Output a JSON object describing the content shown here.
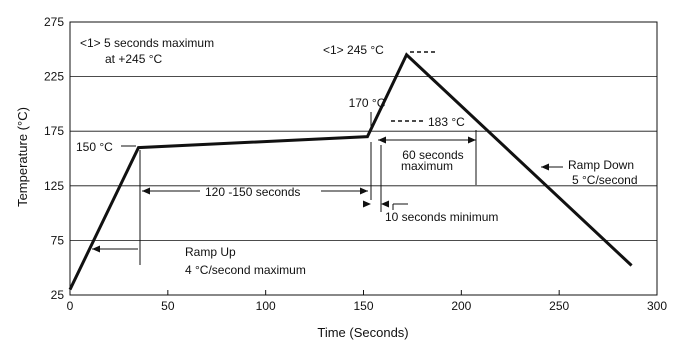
{
  "chart_data": {
    "type": "line",
    "xlabel": "Time (Seconds)",
    "ylabel": "Temperature (°C)",
    "xlim": [
      0,
      300
    ],
    "ylim": [
      25,
      275
    ],
    "x_ticks": [
      0,
      50,
      100,
      150,
      200,
      250,
      300
    ],
    "y_ticks": [
      25,
      75,
      125,
      175,
      225,
      275
    ],
    "grid": "horizontal",
    "series": [
      {
        "x": [
          0,
          35,
          152,
          172,
          287
        ],
        "y": [
          30,
          160,
          170,
          245,
          52
        ]
      }
    ],
    "annotations": {
      "peak_note_line1": "<1> 5 seconds maximum",
      "peak_note_line2": "at +245 °C",
      "peak_label": "<1> 245 °C",
      "soak_start_label": "150 °C",
      "soak_end_label": "170 °C",
      "liquidus_label": "183 °C",
      "soak_duration_label": "120 -150 seconds",
      "time_above_line1": "60 seconds",
      "time_above_line2": "maximum",
      "min_label": "10 seconds minimum",
      "ramp_up_line1": "Ramp Up",
      "ramp_up_line2": "4 °C/second maximum",
      "ramp_down_line1": "Ramp Down",
      "ramp_down_line2": "5 °C/second"
    }
  }
}
